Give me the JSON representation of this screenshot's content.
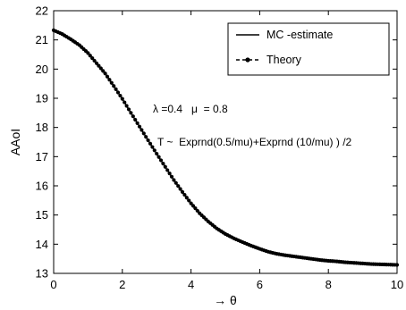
{
  "chart_data": {
    "type": "line",
    "xlabel": "→ θ",
    "ylabel": "AAoI",
    "xlim": [
      0,
      10
    ],
    "ylim": [
      13,
      22
    ],
    "xticks": [
      0,
      2,
      4,
      6,
      8,
      10
    ],
    "yticks": [
      13,
      14,
      15,
      16,
      17,
      18,
      19,
      20,
      21,
      22
    ],
    "grid": false,
    "legend_position": "top-right",
    "annotations": {
      "params": "λ =0.4   μ  = 0.8",
      "formula": "T ~  Exprnd(0.5/mu)+Exprnd (10/mu) ) /2"
    },
    "x": [
      0,
      0.25,
      0.5,
      0.75,
      1,
      1.25,
      1.5,
      1.75,
      2,
      2.25,
      2.5,
      2.75,
      3,
      3.25,
      3.5,
      3.75,
      4,
      4.25,
      4.5,
      4.75,
      5,
      5.25,
      5.5,
      5.75,
      6,
      6.25,
      6.5,
      6.75,
      7,
      7.25,
      7.5,
      7.75,
      8,
      8.25,
      8.5,
      8.75,
      9,
      9.25,
      9.5,
      9.75,
      10
    ],
    "series": [
      {
        "name": "MC -estimate",
        "style": "solid",
        "color": "#000000",
        "values": [
          21.33,
          21.2,
          21.02,
          20.82,
          20.55,
          20.2,
          19.85,
          19.42,
          18.98,
          18.5,
          18.03,
          17.56,
          17.1,
          16.65,
          16.2,
          15.79,
          15.4,
          15.06,
          14.78,
          14.54,
          14.35,
          14.2,
          14.07,
          13.95,
          13.84,
          13.74,
          13.67,
          13.62,
          13.58,
          13.54,
          13.5,
          13.46,
          13.43,
          13.41,
          13.38,
          13.36,
          13.34,
          13.32,
          13.31,
          13.3,
          13.29
        ]
      },
      {
        "name": "Theory",
        "style": "dashed-dot-marker",
        "color": "#000000",
        "values": [
          21.33,
          21.2,
          21.02,
          20.82,
          20.55,
          20.2,
          19.85,
          19.42,
          18.98,
          18.5,
          18.03,
          17.56,
          17.1,
          16.65,
          16.2,
          15.79,
          15.4,
          15.06,
          14.78,
          14.54,
          14.35,
          14.2,
          14.07,
          13.95,
          13.84,
          13.74,
          13.67,
          13.62,
          13.58,
          13.54,
          13.5,
          13.46,
          13.43,
          13.41,
          13.38,
          13.36,
          13.34,
          13.32,
          13.31,
          13.3,
          13.29
        ]
      }
    ]
  }
}
